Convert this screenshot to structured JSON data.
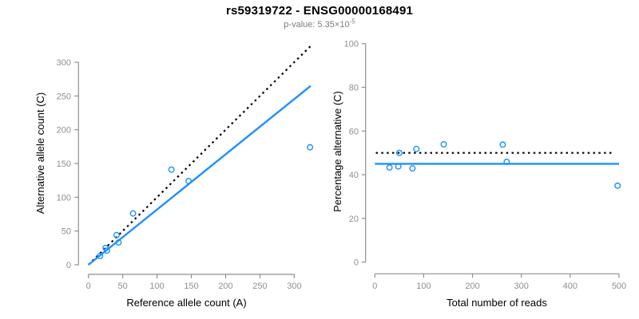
{
  "header": {
    "title": "rs59319722 - ENSG00000168491",
    "subtitle_prefix": "p-value: 5.35×10",
    "subtitle_exponent": "-5"
  },
  "colors": {
    "accent_blue": "#1E90FF",
    "axis_gray": "#8f8f8f",
    "tick_label_gray": "#8f8f8f",
    "subtitle_gray": "#7d7d7d",
    "reference_line_black": "#000000",
    "label_black": "#000000"
  },
  "chart_data": [
    {
      "type": "scatter",
      "title": "rs59319722 - ENSG00000168491",
      "subtitle": "p-value: 5.35×10^-5",
      "xlabel": "Reference allele count (A)",
      "ylabel": "Alternative allele count (C)",
      "xticks": [
        0,
        50,
        100,
        150,
        200,
        250,
        300
      ],
      "yticks": [
        0,
        50,
        100,
        150,
        200,
        250,
        300
      ],
      "xlim": [
        0,
        330
      ],
      "ylim": [
        0,
        330
      ],
      "grid": false,
      "points": [
        [
          17,
          13
        ],
        [
          25,
          25
        ],
        [
          27,
          21
        ],
        [
          44,
          33
        ],
        [
          41,
          44
        ],
        [
          65,
          76
        ],
        [
          121,
          141
        ],
        [
          146,
          124
        ],
        [
          323,
          174
        ]
      ],
      "lines": [
        {
          "name": "identity-line",
          "style": "dotted",
          "x1": 0,
          "y1": 0,
          "x2": 327,
          "y2": 327
        },
        {
          "name": "fit-line",
          "style": "solid",
          "x1": 0,
          "y1": 0,
          "x2": 324,
          "y2": 265
        }
      ]
    },
    {
      "type": "scatter",
      "xlabel": "Total number of reads",
      "ylabel": "Percentage alternative (C)",
      "xticks": [
        0,
        100,
        200,
        300,
        400,
        500
      ],
      "yticks": [
        0,
        20,
        40,
        60,
        80,
        100
      ],
      "xlim": [
        0,
        510
      ],
      "ylim": [
        0,
        100
      ],
      "grid": false,
      "points": [
        [
          30,
          43.3
        ],
        [
          48,
          43.8
        ],
        [
          50,
          50
        ],
        [
          77,
          42.9
        ],
        [
          85,
          51.8
        ],
        [
          141,
          53.9
        ],
        [
          262,
          53.8
        ],
        [
          270,
          45.9
        ],
        [
          497,
          35
        ]
      ],
      "lines": [
        {
          "name": "null-line",
          "style": "dotted",
          "x1": 2,
          "y1": 50,
          "x2": 490,
          "y2": 50
        },
        {
          "name": "fit-line",
          "style": "solid",
          "x1": 0,
          "y1": 45,
          "x2": 500,
          "y2": 45
        }
      ]
    }
  ]
}
